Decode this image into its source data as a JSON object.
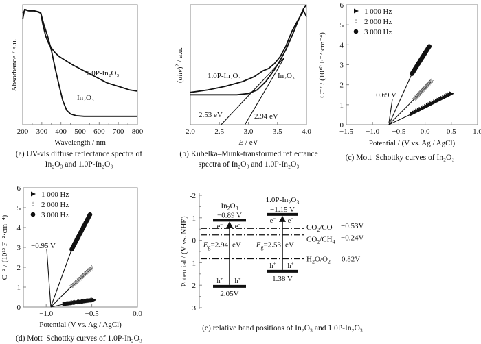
{
  "chart_data": [
    {
      "id": "a",
      "type": "line",
      "caption": [
        "(a) UV-vis diffuse reflectance spectra of",
        "In₂O₃ and 1.0P-In₂O₃"
      ],
      "xlabel": "Wavelength / nm",
      "ylabel": "Absorbance / a.u.",
      "xlim": [
        200,
        800
      ],
      "ylim": [
        0,
        1
      ],
      "xticks": [
        "200",
        "300",
        "400",
        "500",
        "600",
        "700",
        "800"
      ],
      "series": [
        {
          "name": "1.0P-In₂O₃",
          "x": [
            200,
            215,
            235,
            260,
            280,
            295,
            305,
            320,
            335,
            350,
            370,
            390,
            420,
            460,
            520,
            580,
            640,
            700,
            760,
            800
          ],
          "y": [
            0.93,
            0.96,
            0.95,
            0.95,
            0.94,
            0.93,
            0.84,
            0.74,
            0.68,
            0.64,
            0.6,
            0.57,
            0.54,
            0.5,
            0.45,
            0.4,
            0.35,
            0.32,
            0.29,
            0.28
          ]
        },
        {
          "name": "In₂O₃",
          "x": [
            200,
            210,
            230,
            260,
            285,
            295,
            310,
            330,
            350,
            370,
            390,
            410,
            430,
            450,
            480,
            520,
            600,
            700,
            800
          ],
          "y": [
            0.88,
            0.96,
            0.95,
            0.95,
            0.94,
            0.93,
            0.84,
            0.74,
            0.62,
            0.47,
            0.33,
            0.2,
            0.12,
            0.09,
            0.075,
            0.07,
            0.07,
            0.07,
            0.07
          ]
        }
      ],
      "annotations": [
        {
          "text": "1.0P-In₂O₃"
        },
        {
          "text": "In₂O₃"
        }
      ]
    },
    {
      "id": "b",
      "type": "line",
      "caption": [
        "(b) Kubelka–Munk-transformed reflectance",
        "spectra of In₂O₃ and 1.0P-In₂O₃"
      ],
      "xlabel": "E / eV",
      "ylabel": "(αhν)² / a.u.",
      "xlim": [
        2.0,
        4.0
      ],
      "ylim": [
        0,
        1
      ],
      "xticks": [
        "2.0",
        "2.5",
        "3.0",
        "3.5",
        "4.0"
      ],
      "series": [
        {
          "name": "1.0P-In₂O₃",
          "x": [
            2.0,
            2.3,
            2.6,
            2.9,
            3.1,
            3.25,
            3.35,
            3.45,
            3.55,
            3.65,
            3.75,
            3.85,
            3.95,
            4.0
          ],
          "y": [
            0.27,
            0.29,
            0.32,
            0.36,
            0.4,
            0.45,
            0.47,
            0.51,
            0.57,
            0.66,
            0.78,
            0.87,
            0.95,
            0.9
          ]
        },
        {
          "name": "In₂O₃",
          "x": [
            2.0,
            2.5,
            2.8,
            3.0,
            3.15,
            3.3,
            3.45,
            3.55,
            3.65,
            3.75,
            3.85,
            3.95,
            4.0
          ],
          "y": [
            0.25,
            0.25,
            0.25,
            0.26,
            0.29,
            0.36,
            0.46,
            0.54,
            0.63,
            0.74,
            0.86,
            0.97,
            1.0
          ]
        }
      ],
      "tangents": [
        {
          "name": "1.0P-In₂O₃ fit",
          "intercept_eV": 2.53,
          "to": [
            3.62,
            0.56
          ]
        },
        {
          "name": "In₂O₃ fit",
          "intercept_eV": 2.94,
          "to": [
            3.62,
            0.56
          ]
        }
      ],
      "annotations": [
        {
          "text": "1.0P-In₂O₃"
        },
        {
          "text": "In₂O₃"
        },
        {
          "text": "2.53 eV"
        },
        {
          "text": "2.94 eV"
        }
      ]
    },
    {
      "id": "c",
      "type": "scatter",
      "caption": [
        "(c) Mott–Schottky curves of In₂O₃"
      ],
      "xlabel": "Potential / (V vs. Ag / AgCl)",
      "ylabel": "C⁻² / (10¹⁰ F⁻²·cm⁻⁴)",
      "xlim": [
        -1.5,
        1.0
      ],
      "ylim": [
        0,
        6
      ],
      "xticks": [
        "−1.5",
        "−1.0",
        "−0.5",
        "0.0",
        "0.5",
        "1.0"
      ],
      "yticks": [
        "0",
        "1",
        "2",
        "3",
        "4",
        "5",
        "6"
      ],
      "legend": [
        "1 000 Hz",
        "2 000 Hz",
        "3 000 Hz"
      ],
      "legend_position": "top-left",
      "series": [
        {
          "name": "1 000 Hz",
          "marker": "triangle",
          "x_range": [
            -0.25,
            0.5
          ],
          "y_range": [
            0.55,
            1.55
          ]
        },
        {
          "name": "2 000 Hz",
          "marker": "star",
          "x_range": [
            -0.2,
            0.12
          ],
          "y_range": [
            1.3,
            2.2
          ]
        },
        {
          "name": "3 000 Hz",
          "marker": "circle",
          "x_range": [
            -0.25,
            0.08
          ],
          "y_range": [
            2.55,
            3.92
          ]
        }
      ],
      "flatband": -0.69,
      "annotations": [
        {
          "text": "−0.69 V"
        }
      ]
    },
    {
      "id": "d",
      "type": "scatter",
      "caption": [
        "(d) Mott–Schottky curves of 1.0P-In₂O₃"
      ],
      "xlabel": "Potential (V vs. Ag / AgCl)",
      "ylabel": "C⁻² / (10¹³ F⁻²·cm⁻⁴)",
      "xlim": [
        -1.25,
        0.0
      ],
      "ylim": [
        0,
        6
      ],
      "xticks": [
        "−1.0",
        "−0.5",
        "0.0"
      ],
      "yticks": [
        "0",
        "1",
        "2",
        "3",
        "4",
        "5",
        "6"
      ],
      "legend": [
        "1 000 Hz",
        "2 000 Hz",
        "3 000 Hz"
      ],
      "legend_position": "top-left",
      "series": [
        {
          "name": "1 000 Hz",
          "marker": "triangle",
          "x_range": [
            -0.8,
            -0.48
          ],
          "y_range": [
            0.15,
            0.35
          ]
        },
        {
          "name": "2 000 Hz",
          "marker": "star",
          "x_range": [
            -0.72,
            -0.5
          ],
          "y_range": [
            1.05,
            2.0
          ]
        },
        {
          "name": "3 000 Hz",
          "marker": "circle",
          "x_range": [
            -0.72,
            -0.52
          ],
          "y_range": [
            2.9,
            4.65
          ]
        }
      ],
      "flatband": -0.95,
      "annotations": [
        {
          "text": "−0.95 V"
        }
      ]
    },
    {
      "id": "e",
      "type": "diagram",
      "caption": [
        "(e) relative band positions of In₂O₃ and 1.0P-In₂O₃"
      ],
      "ylabel": "Potential / (V vs. NHE)",
      "ylim": [
        -2,
        3
      ],
      "yticks": [
        "-2",
        "-1",
        "0",
        "1",
        "2",
        "3"
      ],
      "materials": [
        {
          "name": "In₂O₃",
          "cb": -0.89,
          "vb": 2.05,
          "cb_label": "−0.89 V",
          "vb_label": "2.05V",
          "eg_label": "=2.94",
          "eg_unit": "eV"
        },
        {
          "name": "1.0P-In₂O₃",
          "cb": -1.15,
          "vb": 1.38,
          "cb_label": "−1.15 V",
          "vb_label": "1.38 V",
          "eg_label": "=2.53",
          "eg_unit": "eV"
        }
      ],
      "redox": [
        {
          "name": "CO₂/CO",
          "value": -0.53,
          "label": "−0.53V"
        },
        {
          "name": "CO₂/CH₄",
          "value": -0.24,
          "label": "−0.24V"
        },
        {
          "name": "H₂O/O₂",
          "value": 0.82,
          "label": "0.82V"
        }
      ],
      "carriers": {
        "electron": "e⁻",
        "hole": "h⁺",
        "eg_symbol": "E",
        "eg_sub": "g"
      }
    }
  ]
}
